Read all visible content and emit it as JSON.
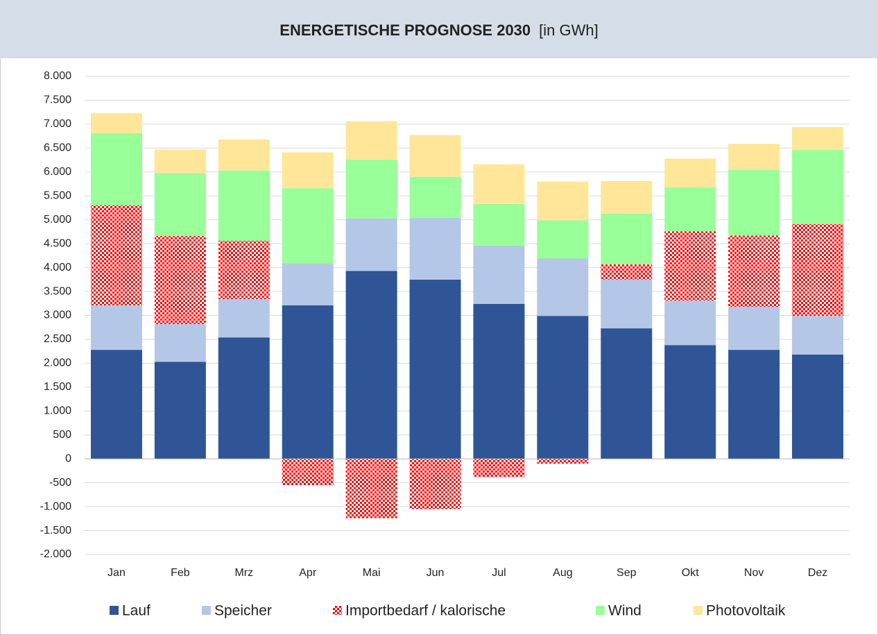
{
  "chart_data": {
    "type": "stacked_bar",
    "title": "ENERGETISCHE PROGNOSE 2030",
    "subtitle": "[in GWh]",
    "categories": [
      "Jan",
      "Feb",
      "Mrz",
      "Apr",
      "Mai",
      "Jun",
      "Jul",
      "Aug",
      "Sep",
      "Okt",
      "Nov",
      "Dez"
    ],
    "series": [
      {
        "name": "Lauf",
        "color": "#2f5597",
        "values": [
          2280,
          2030,
          2540,
          3210,
          3930,
          3750,
          3240,
          2990,
          2730,
          2380,
          2280,
          2180
        ]
      },
      {
        "name": "Speicher",
        "color": "#b4c7e7",
        "values": [
          930,
          790,
          800,
          880,
          1100,
          1290,
          1220,
          1200,
          1020,
          930,
          900,
          810
        ]
      },
      {
        "name": "Importbedarf / kalorische",
        "color": "#ff0000",
        "pattern": "checker",
        "values": [
          2090,
          1840,
          1220,
          -550,
          -1240,
          -1050,
          -380,
          -100,
          320,
          1450,
          1490,
          1920
        ]
      },
      {
        "name": "Wind",
        "color": "#99ff99",
        "values": [
          1510,
          1320,
          1470,
          1570,
          1230,
          860,
          870,
          800,
          1060,
          920,
          1380,
          1550
        ]
      },
      {
        "name": "Photovoltaik",
        "color": "#ffe699",
        "values": [
          420,
          490,
          650,
          750,
          800,
          870,
          830,
          810,
          680,
          600,
          540,
          480
        ]
      }
    ],
    "ylim": [
      -2000,
      8000
    ],
    "yticks": [
      {
        "value": -2000,
        "label": "-2.000"
      },
      {
        "value": -1500,
        "label": "-1.500"
      },
      {
        "value": -1000,
        "label": "-1.000"
      },
      -500,
      0,
      500,
      {
        "value": 1000,
        "label": "1.000"
      },
      {
        "value": 1500,
        "label": "1.500"
      },
      {
        "value": 2000,
        "label": "2.000"
      },
      {
        "value": 2500,
        "label": "2.500"
      },
      {
        "value": 3000,
        "label": "3.000"
      },
      {
        "value": 3500,
        "label": "3.500"
      },
      {
        "value": 4000,
        "label": "4.000"
      },
      {
        "value": 4500,
        "label": "4.500"
      },
      {
        "value": 5000,
        "label": "5.000"
      },
      {
        "value": 5500,
        "label": "5.500"
      },
      {
        "value": 6000,
        "label": "6.000"
      },
      {
        "value": 6500,
        "label": "6.500"
      },
      {
        "value": 7000,
        "label": "7.000"
      },
      {
        "value": 7500,
        "label": "7.500"
      },
      {
        "value": 8000,
        "label": "8.000"
      }
    ],
    "grid": true,
    "legend": "bottom"
  }
}
